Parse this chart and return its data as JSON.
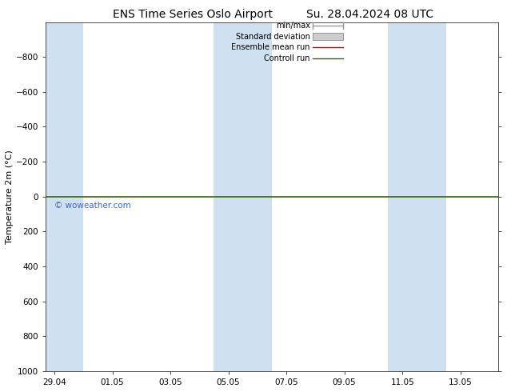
{
  "title_left": "ENS Time Series Oslo Airport",
  "title_right": "Su. 28.04.2024 08 UTC",
  "ylabel": "Temperature 2m (°C)",
  "ylim_top": 1000,
  "ylim_bottom": -1000,
  "yticks": [
    -800,
    -600,
    -400,
    -200,
    0,
    200,
    400,
    600,
    800,
    1000
  ],
  "xtick_labels": [
    "29.04",
    "01.05",
    "03.05",
    "05.05",
    "07.05",
    "09.05",
    "11.05",
    "13.05"
  ],
  "xtick_positions": [
    0,
    2,
    4,
    6,
    8,
    10,
    12,
    14
  ],
  "xlim": [
    -0.3,
    15.3
  ],
  "bg_color": "#ffffff",
  "plot_bg_color": "#ffffff",
  "shaded_band_color": "#cfe0f0",
  "green_line_y": 0,
  "green_line_color": "#336600",
  "watermark": "© woweather.com",
  "watermark_color": "#4466cc",
  "legend_items": [
    {
      "label": "min/max",
      "color": "#999999",
      "style": "line_with_caps"
    },
    {
      "label": "Standard deviation",
      "color": "#cccccc",
      "style": "box"
    },
    {
      "label": "Ensemble mean run",
      "color": "#cc0000",
      "style": "line"
    },
    {
      "label": "Controll run",
      "color": "#336600",
      "style": "line"
    }
  ],
  "band_pairs": [
    [
      -0.3,
      1.0
    ],
    [
      5.5,
      6.5
    ],
    [
      6.5,
      7.5
    ],
    [
      11.5,
      12.5
    ],
    [
      12.5,
      13.5
    ]
  ],
  "title_fontsize": 10,
  "ylabel_fontsize": 8,
  "tick_fontsize": 7.5,
  "legend_fontsize": 7
}
